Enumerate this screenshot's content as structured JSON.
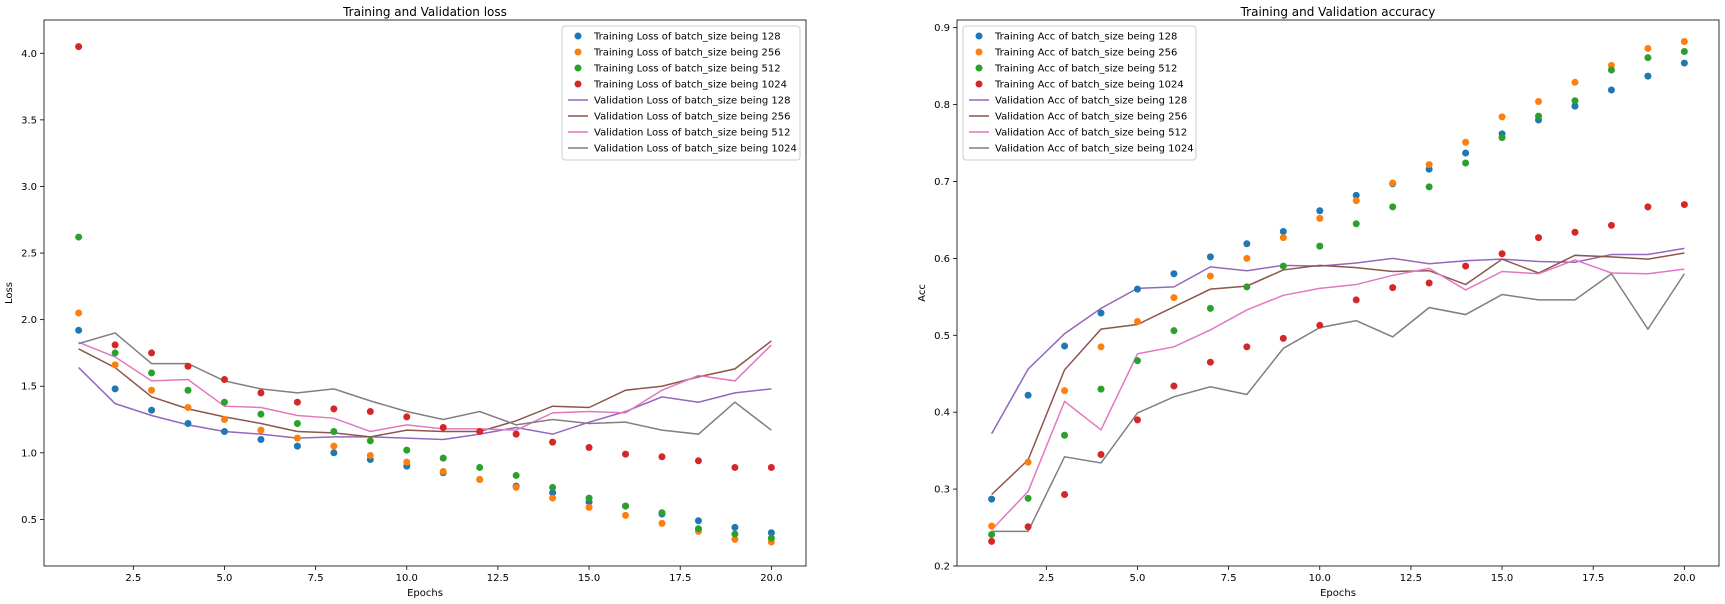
{
  "chart_data": [
    {
      "type": "line",
      "title": "Training and Validation loss",
      "xlabel": "Epochs",
      "ylabel": "Loss",
      "xlim": [
        0.05,
        20.95
      ],
      "ylim": [
        0.15,
        4.25
      ],
      "xticks": [
        2.5,
        5.0,
        7.5,
        10.0,
        12.5,
        15.0,
        17.5,
        20.0
      ],
      "xtick_labels": [
        "2.5",
        "5.0",
        "7.5",
        "10.0",
        "12.5",
        "15.0",
        "17.5",
        "20.0"
      ],
      "yticks": [
        0.5,
        1.0,
        1.5,
        2.0,
        2.5,
        3.0,
        3.5,
        4.0
      ],
      "ytick_labels": [
        "0.5",
        "1.0",
        "1.5",
        "2.0",
        "2.5",
        "3.0",
        "3.5",
        "4.0"
      ],
      "grid": false,
      "legend_position": "top-right",
      "x": [
        1,
        2,
        3,
        4,
        5,
        6,
        7,
        8,
        9,
        10,
        11,
        12,
        13,
        14,
        15,
        16,
        17,
        18,
        19,
        20
      ],
      "series": [
        {
          "name": "Training Loss of batch_size being 128",
          "style": "scatter",
          "color": "#1f77b4",
          "values": [
            1.92,
            1.48,
            1.32,
            1.22,
            1.16,
            1.1,
            1.05,
            1.0,
            0.95,
            0.9,
            0.85,
            0.8,
            0.75,
            0.7,
            0.63,
            0.6,
            0.54,
            0.49,
            0.44,
            0.4
          ]
        },
        {
          "name": "Training Loss of batch_size being 256",
          "style": "scatter",
          "color": "#ff7f0e",
          "values": [
            2.05,
            1.66,
            1.47,
            1.34,
            1.25,
            1.17,
            1.11,
            1.05,
            0.98,
            0.93,
            0.86,
            0.8,
            0.74,
            0.66,
            0.59,
            0.53,
            0.47,
            0.41,
            0.35,
            0.33
          ]
        },
        {
          "name": "Training Loss of batch_size being 512",
          "style": "scatter",
          "color": "#2ca02c",
          "values": [
            2.62,
            1.75,
            1.6,
            1.47,
            1.38,
            1.29,
            1.22,
            1.16,
            1.09,
            1.02,
            0.96,
            0.89,
            0.83,
            0.74,
            0.66,
            0.6,
            0.55,
            0.43,
            0.39,
            0.36
          ]
        },
        {
          "name": "Training Loss of batch_size being 1024",
          "style": "scatter",
          "color": "#d62728",
          "values": [
            4.05,
            1.81,
            1.75,
            1.65,
            1.55,
            1.45,
            1.38,
            1.33,
            1.31,
            1.27,
            1.19,
            1.16,
            1.14,
            1.08,
            1.04,
            0.99,
            0.97,
            0.94,
            0.89,
            0.89
          ]
        },
        {
          "name": "Validation Loss of batch_size being 128",
          "style": "line",
          "color": "#9467bd",
          "values": [
            1.64,
            1.37,
            1.28,
            1.21,
            1.16,
            1.14,
            1.11,
            1.12,
            1.12,
            1.11,
            1.1,
            1.14,
            1.19,
            1.14,
            1.23,
            1.31,
            1.42,
            1.38,
            1.45,
            1.48
          ]
        },
        {
          "name": "Validation Loss of batch_size being 256",
          "style": "line",
          "color": "#8c564b",
          "values": [
            1.78,
            1.64,
            1.42,
            1.33,
            1.27,
            1.22,
            1.16,
            1.15,
            1.12,
            1.17,
            1.16,
            1.16,
            1.24,
            1.35,
            1.34,
            1.47,
            1.5,
            1.57,
            1.63,
            1.84
          ]
        },
        {
          "name": "Validation Loss of batch_size being 512",
          "style": "line",
          "color": "#e377c2",
          "values": [
            1.83,
            1.72,
            1.54,
            1.55,
            1.35,
            1.34,
            1.28,
            1.26,
            1.16,
            1.21,
            1.18,
            1.18,
            1.17,
            1.3,
            1.31,
            1.3,
            1.47,
            1.58,
            1.54,
            1.81
          ]
        },
        {
          "name": "Validation Loss of batch_size being 1024",
          "style": "line",
          "color": "#7f7f7f",
          "values": [
            1.82,
            1.9,
            1.67,
            1.67,
            1.54,
            1.48,
            1.45,
            1.48,
            1.39,
            1.31,
            1.25,
            1.31,
            1.21,
            1.25,
            1.22,
            1.23,
            1.17,
            1.14,
            1.38,
            1.17
          ]
        }
      ]
    },
    {
      "type": "line",
      "title": "Training and Validation accuracy",
      "xlabel": "Epochs",
      "ylabel": "Acc",
      "xlim": [
        0.05,
        20.95
      ],
      "ylim": [
        0.2,
        0.91
      ],
      "xticks": [
        2.5,
        5.0,
        7.5,
        10.0,
        12.5,
        15.0,
        17.5,
        20.0
      ],
      "xtick_labels": [
        "2.5",
        "5.0",
        "7.5",
        "10.0",
        "12.5",
        "15.0",
        "17.5",
        "20.0"
      ],
      "yticks": [
        0.2,
        0.3,
        0.4,
        0.5,
        0.6,
        0.7,
        0.8,
        0.9
      ],
      "ytick_labels": [
        "0.2",
        "0.3",
        "0.4",
        "0.5",
        "0.6",
        "0.7",
        "0.8",
        "0.9"
      ],
      "grid": false,
      "legend_position": "top-left",
      "x": [
        1,
        2,
        3,
        4,
        5,
        6,
        7,
        8,
        9,
        10,
        11,
        12,
        13,
        14,
        15,
        16,
        17,
        18,
        19,
        20
      ],
      "series": [
        {
          "name": "Training Acc of batch_size being 128",
          "style": "scatter",
          "color": "#1f77b4",
          "values": [
            0.287,
            0.422,
            0.486,
            0.529,
            0.56,
            0.58,
            0.602,
            0.619,
            0.635,
            0.662,
            0.682,
            0.697,
            0.716,
            0.737,
            0.762,
            0.78,
            0.798,
            0.819,
            0.837,
            0.854
          ]
        },
        {
          "name": "Training Acc of batch_size being 256",
          "style": "scatter",
          "color": "#ff7f0e",
          "values": [
            0.252,
            0.335,
            0.428,
            0.485,
            0.518,
            0.549,
            0.577,
            0.6,
            0.627,
            0.652,
            0.675,
            0.698,
            0.722,
            0.751,
            0.784,
            0.804,
            0.829,
            0.851,
            0.873,
            0.882
          ]
        },
        {
          "name": "Training Acc of batch_size being 512",
          "style": "scatter",
          "color": "#2ca02c",
          "values": [
            0.241,
            0.288,
            0.37,
            0.43,
            0.467,
            0.506,
            0.535,
            0.563,
            0.59,
            0.616,
            0.645,
            0.667,
            0.693,
            0.724,
            0.757,
            0.785,
            0.805,
            0.845,
            0.861,
            0.869
          ]
        },
        {
          "name": "Training Acc of batch_size being 1024",
          "style": "scatter",
          "color": "#d62728",
          "values": [
            0.232,
            0.251,
            0.293,
            0.345,
            0.39,
            0.434,
            0.465,
            0.485,
            0.496,
            0.513,
            0.546,
            0.562,
            0.568,
            0.59,
            0.606,
            0.627,
            0.634,
            0.643,
            0.667,
            0.67
          ]
        },
        {
          "name": "Validation Acc of batch_size being 128",
          "style": "line",
          "color": "#9467bd",
          "values": [
            0.372,
            0.456,
            0.502,
            0.535,
            0.561,
            0.563,
            0.589,
            0.584,
            0.591,
            0.59,
            0.594,
            0.6,
            0.593,
            0.597,
            0.599,
            0.596,
            0.595,
            0.605,
            0.605,
            0.613
          ]
        },
        {
          "name": "Validation Acc of batch_size being 256",
          "style": "line",
          "color": "#8c564b",
          "values": [
            0.293,
            0.338,
            0.455,
            0.508,
            0.514,
            0.537,
            0.56,
            0.564,
            0.585,
            0.591,
            0.588,
            0.583,
            0.584,
            0.566,
            0.599,
            0.581,
            0.604,
            0.602,
            0.599,
            0.607
          ]
        },
        {
          "name": "Validation Acc of batch_size being 512",
          "style": "line",
          "color": "#e377c2",
          "values": [
            0.247,
            0.297,
            0.414,
            0.377,
            0.476,
            0.485,
            0.507,
            0.533,
            0.552,
            0.561,
            0.566,
            0.578,
            0.587,
            0.559,
            0.583,
            0.58,
            0.598,
            0.581,
            0.58,
            0.586
          ]
        },
        {
          "name": "Validation Acc of batch_size being 1024",
          "style": "line",
          "color": "#7f7f7f",
          "values": [
            0.245,
            0.245,
            0.342,
            0.334,
            0.399,
            0.42,
            0.433,
            0.423,
            0.483,
            0.51,
            0.519,
            0.498,
            0.536,
            0.527,
            0.553,
            0.546,
            0.546,
            0.58,
            0.508,
            0.58
          ]
        }
      ]
    }
  ]
}
